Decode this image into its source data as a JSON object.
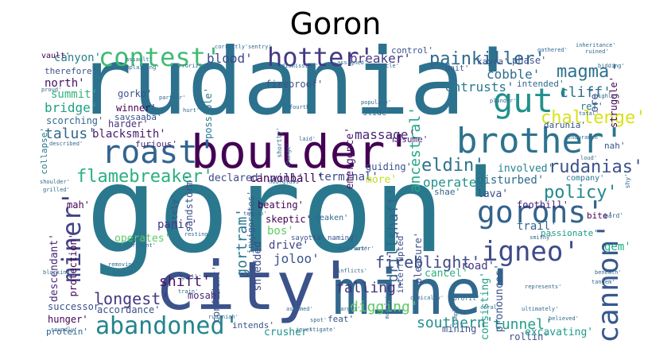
{
  "title": "Goron",
  "words": [
    {
      "text": "goron'",
      "color": "#2a788e"
    },
    {
      "text": "rudania'",
      "color": "#2c728e"
    },
    {
      "text": "city'",
      "color": "#3b528b"
    },
    {
      "text": "mine'",
      "color": "#31688e"
    },
    {
      "text": "boulder'",
      "color": "#440154"
    },
    {
      "text": "brother'",
      "color": "#2c738e"
    },
    {
      "text": "roast'",
      "color": "#32648e"
    },
    {
      "text": "gut'",
      "color": "#21908d"
    },
    {
      "text": "gorons'",
      "color": "#33638d"
    },
    {
      "text": "cannon'",
      "color": "#38588c"
    },
    {
      "text": "igneo'",
      "color": "#3e4a89"
    },
    {
      "text": "miner'",
      "color": "#414487"
    },
    {
      "text": "abandoned'",
      "color": "#25848e"
    },
    {
      "text": "contest'",
      "color": "#3fbc73"
    },
    {
      "text": "hotter'",
      "color": "#443983"
    },
    {
      "text": "painkiller'",
      "color": "#30698e"
    },
    {
      "text": "magma'",
      "color": "#2d708e"
    },
    {
      "text": "challenge'",
      "color": "#d8e219"
    },
    {
      "text": "eldin'",
      "color": "#2d718e"
    },
    {
      "text": "rudanias'",
      "color": "#3b528b"
    },
    {
      "text": "flamebreaker'",
      "color": "#2ab07f"
    },
    {
      "text": "policy'",
      "color": "#23888e"
    },
    {
      "text": "longest'",
      "color": "#453781"
    },
    {
      "text": "fireblight'",
      "color": "#3e4c8a"
    },
    {
      "text": "southern'",
      "color": "#218f8d"
    },
    {
      "text": "tunnel'",
      "color": "#1f9e89"
    },
    {
      "text": "digging'",
      "color": "#5ec962"
    },
    {
      "text": "falling'",
      "color": "#46337f"
    },
    {
      "text": "drillshaft'",
      "color": "#33638d"
    },
    {
      "text": "shift'",
      "color": "#481668"
    },
    {
      "text": "gortram'",
      "color": "#2a788e"
    },
    {
      "text": "massage'",
      "color": "#482475"
    },
    {
      "text": "ancestral'",
      "color": "#22a785"
    },
    {
      "text": "blood'",
      "color": "#3f4889"
    },
    {
      "text": "breaker'",
      "color": "#453882"
    },
    {
      "text": "cliff'",
      "color": "#2d708e"
    },
    {
      "text": "cobble'",
      "color": "#2e6e8e"
    },
    {
      "text": "entrusts'",
      "color": "#2a788e"
    },
    {
      "text": "cannonball'",
      "color": "#440154"
    },
    {
      "text": "talus'",
      "color": "#31688e"
    },
    {
      "text": "blacksmith'",
      "color": "#481a6c"
    },
    {
      "text": "bridge'",
      "color": "#1fa088"
    },
    {
      "text": "summit'",
      "color": "#31b57b"
    },
    {
      "text": "north'",
      "color": "#471063"
    },
    {
      "text": "canyon'",
      "color": "#26818e"
    },
    {
      "text": "gorko'",
      "color": "#3b528b"
    },
    {
      "text": "winner'",
      "color": "#440154"
    },
    {
      "text": "harder'",
      "color": "#46327e"
    },
    {
      "text": "declared'",
      "color": "#3e4a89"
    },
    {
      "text": "will'",
      "color": "#46317e"
    },
    {
      "text": "terminal'",
      "color": "#3e4a89"
    },
    {
      "text": "operate'",
      "color": "#21918c"
    },
    {
      "text": "disturbed'",
      "color": "#2f6c8e"
    },
    {
      "text": "lava'",
      "color": "#3b518b"
    },
    {
      "text": "foothill'",
      "color": "#482173"
    },
    {
      "text": "trail'",
      "color": "#33638d"
    },
    {
      "text": "passionate'",
      "color": "#1f9a8a"
    },
    {
      "text": "bite'",
      "color": "#440154"
    },
    {
      "text": "gem'",
      "color": "#22a884"
    },
    {
      "text": "road'",
      "color": "#443983"
    },
    {
      "text": "cancel'",
      "color": "#2db27d"
    },
    {
      "text": "consisting'",
      "color": "#1f9e89"
    },
    {
      "text": "pronounces'",
      "color": "#3b528b"
    },
    {
      "text": "excavating'",
      "color": "#1e9b8a"
    },
    {
      "text": "mining'",
      "color": "#3b528b"
    },
    {
      "text": "crusher'",
      "color": "#20928c"
    },
    {
      "text": "accordance'",
      "color": "#3c4f8a"
    },
    {
      "text": "successor'",
      "color": "#3b528b"
    },
    {
      "text": "hunger'",
      "color": "#440154"
    },
    {
      "text": "protein'",
      "color": "#31688e"
    },
    {
      "text": "mosah'",
      "color": "#482878"
    },
    {
      "text": "joloo'",
      "color": "#3b528b"
    },
    {
      "text": "drive'",
      "color": "#404588"
    },
    {
      "text": "shredded'",
      "color": "#3e4a89"
    },
    {
      "text": "skeptic'",
      "color": "#440154"
    },
    {
      "text": "beating'",
      "color": "#440154"
    },
    {
      "text": "bos'",
      "color": "#5ec962"
    },
    {
      "text": "operates'",
      "color": "#5ec962"
    },
    {
      "text": "panic'",
      "color": "#443983"
    },
    {
      "text": "descendant'",
      "color": "#482878"
    },
    {
      "text": "protection'",
      "color": "#440154"
    },
    {
      "text": "mah'",
      "color": "#440154"
    },
    {
      "text": "more'",
      "color": "#bddf26"
    },
    {
      "text": "involved'",
      "color": "#26828e"
    },
    {
      "text": "emergence'",
      "color": "#481467"
    },
    {
      "text": "scorching'",
      "color": "#31688e"
    },
    {
      "text": "sandstorm'",
      "color": "#3b528b"
    },
    {
      "text": "possible'",
      "color": "#2a788e"
    },
    {
      "text": "collapse'",
      "color": "#2a788e"
    },
    {
      "text": "therefore'",
      "color": "#3b528b"
    },
    {
      "text": "vault'",
      "color": "#440154"
    },
    {
      "text": "savsaaba'",
      "color": "#3b528b"
    },
    {
      "text": "furious'",
      "color": "#482878"
    },
    {
      "text": "phase'",
      "color": "#3b528b"
    },
    {
      "text": "intended'",
      "color": "#31688e"
    },
    {
      "text": "ref'",
      "color": "#2a788e"
    },
    {
      "text": "ore'",
      "color": "#3b528b"
    },
    {
      "text": "struggle'",
      "color": "#440154"
    },
    {
      "text": "darunia'",
      "color": "#3b528b"
    },
    {
      "text": "nah'",
      "color": "#3b528b"
    },
    {
      "text": "company'",
      "color": "#2a788e"
    },
    {
      "text": "shae'",
      "color": "#31688e"
    },
    {
      "text": "guiding'",
      "color": "#3b528b"
    },
    {
      "text": "resume'",
      "color": "#482878"
    },
    {
      "text": "fireproof'",
      "color": "#3b528b"
    },
    {
      "text": "control'",
      "color": "#3b528b"
    },
    {
      "text": "kayra'",
      "color": "#3b528b"
    },
    {
      "text": "slide'",
      "color": "#31688e"
    },
    {
      "text": "weaken'",
      "color": "#31688e"
    },
    {
      "text": "interrupted'",
      "color": "#3b528b"
    },
    {
      "text": "pleasure'",
      "color": "#3b528b"
    },
    {
      "text": "invigorates'",
      "color": "#3b528b"
    },
    {
      "text": "confident'",
      "color": "#3b528b"
    },
    {
      "text": "lately'",
      "color": "#3b528b"
    },
    {
      "text": "naming'",
      "color": "#3b528b"
    },
    {
      "text": "rollin'",
      "color": "#3b528b"
    },
    {
      "text": "intends'",
      "color": "#3b528b"
    },
    {
      "text": "feat'",
      "color": "#3b528b"
    },
    {
      "text": "sayotta'",
      "color": "#3b528b"
    },
    {
      "text": "unit'",
      "color": "#3b528b"
    },
    {
      "text": "grove'",
      "color": "#31688e"
    },
    {
      "text": "pinnacle'",
      "color": "#31688e"
    },
    {
      "text": "terrorizing'",
      "color": "#31688e"
    },
    {
      "text": "complaining'",
      "color": "#31688e"
    },
    {
      "text": "correctly'",
      "color": "#31688e"
    },
    {
      "text": "inflicts'",
      "color": "#31688e"
    },
    {
      "text": "comically'",
      "color": "#31688e"
    },
    {
      "text": "blocking'",
      "color": "#31688e"
    },
    {
      "text": "burned'",
      "color": "#31688e"
    },
    {
      "text": "grill'",
      "color": "#31688e"
    },
    {
      "text": "train'",
      "color": "#31688e"
    },
    {
      "text": "rudaniah'",
      "color": "#31688e"
    },
    {
      "text": "target'",
      "color": "#31688e"
    },
    {
      "text": "profit'",
      "color": "#31688e"
    },
    {
      "text": "tandem'",
      "color": "#31688e"
    },
    {
      "text": "beneath'",
      "color": "#31688e"
    },
    {
      "text": "bard'",
      "color": "#31688e"
    },
    {
      "text": "shy'",
      "color": "#31688e"
    },
    {
      "text": "smithy'",
      "color": "#31688e"
    },
    {
      "text": "grilled'",
      "color": "#31688e"
    },
    {
      "text": "shoulder'",
      "color": "#31688e"
    },
    {
      "text": "described'",
      "color": "#31688e"
    },
    {
      "text": "proud'",
      "color": "#31688e"
    },
    {
      "text": "inheritance'",
      "color": "#31688e"
    },
    {
      "text": "endurance'",
      "color": "#31688e"
    },
    {
      "text": "plunder'",
      "color": "#31688e"
    },
    {
      "text": "highly'",
      "color": "#31688e"
    },
    {
      "text": "populace'",
      "color": "#31688e"
    },
    {
      "text": "fourth'",
      "color": "#31688e"
    },
    {
      "text": "shortly'",
      "color": "#31688e"
    },
    {
      "text": "change'",
      "color": "#31688e"
    },
    {
      "text": "laid'",
      "color": "#31688e"
    },
    {
      "text": "ternio'",
      "color": "#31688e"
    },
    {
      "text": "resting'",
      "color": "#31688e"
    },
    {
      "text": "hourglass'",
      "color": "#31688e"
    },
    {
      "text": "sentry'",
      "color": "#31688e"
    },
    {
      "text": "assigned'",
      "color": "#31688e"
    },
    {
      "text": "dismissive'",
      "color": "#31688e"
    },
    {
      "text": "assault'",
      "color": "#31688e"
    },
    {
      "text": "gathered'",
      "color": "#31688e"
    },
    {
      "text": "ruined'",
      "color": "#31688e"
    },
    {
      "text": "bidding'",
      "color": "#31688e"
    },
    {
      "text": "total'",
      "color": "#31688e"
    },
    {
      "text": "underwater'",
      "color": "#31688e"
    },
    {
      "text": "art'",
      "color": "#31688e"
    },
    {
      "text": "soundly'",
      "color": "#31688e"
    },
    {
      "text": "removing'",
      "color": "#31688e"
    },
    {
      "text": "merchant'",
      "color": "#31688e"
    },
    {
      "text": "partner'",
      "color": "#31688e"
    },
    {
      "text": "hurt'",
      "color": "#31688e"
    },
    {
      "text": "represents'",
      "color": "#31688e"
    },
    {
      "text": "believed'",
      "color": "#31688e"
    },
    {
      "text": "ultimately'",
      "color": "#31688e"
    },
    {
      "text": "mainly'",
      "color": "#31688e"
    },
    {
      "text": "investigate'",
      "color": "#31688e"
    },
    {
      "text": "spot'",
      "color": "#31688e"
    },
    {
      "text": "ashamed'",
      "color": "#31688e"
    },
    {
      "text": "coral'",
      "color": "#31688e"
    },
    {
      "text": "simply'",
      "color": "#31688e"
    },
    {
      "text": "loud'",
      "color": "#31688e"
    }
  ]
}
